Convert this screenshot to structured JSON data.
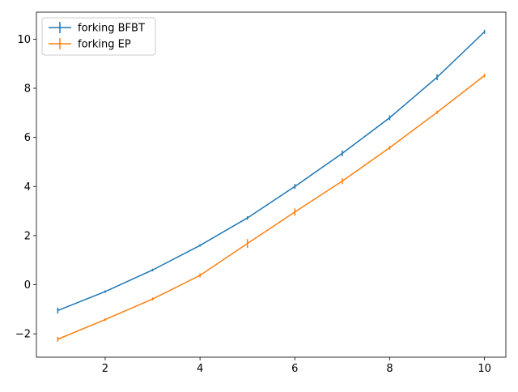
{
  "chart_data": {
    "type": "line",
    "title": "",
    "xlabel": "",
    "ylabel": "",
    "x": [
      1,
      2,
      3,
      4,
      5,
      6,
      7,
      8,
      9,
      10
    ],
    "xlim": [
      0.55,
      10.45
    ],
    "ylim": [
      -2.95,
      11.1
    ],
    "xticks": [
      2,
      4,
      6,
      8,
      10
    ],
    "yticks": [
      -2,
      0,
      2,
      4,
      6,
      8,
      10
    ],
    "xtick_labels": [
      "2",
      "4",
      "6",
      "8",
      "10"
    ],
    "ytick_labels": [
      "−2",
      "0",
      "2",
      "4",
      "6",
      "8",
      "10"
    ],
    "grid": false,
    "legend_position": "upper-left",
    "series": [
      {
        "name": "forking BFBT",
        "color": "#1f77b4",
        "values": [
          -1.05,
          -0.28,
          0.6,
          1.6,
          2.72,
          4.0,
          5.35,
          6.8,
          8.45,
          10.3
        ],
        "errors": [
          0.12,
          0.05,
          0.05,
          0.05,
          0.07,
          0.1,
          0.12,
          0.1,
          0.12,
          0.08
        ]
      },
      {
        "name": "forking EP",
        "color": "#ff7f0e",
        "values": [
          -2.22,
          -1.42,
          -0.58,
          0.38,
          1.68,
          2.96,
          4.22,
          5.58,
          7.02,
          8.52
        ],
        "errors": [
          0.1,
          0.05,
          0.06,
          0.08,
          0.18,
          0.15,
          0.12,
          0.08,
          0.07,
          0.07
        ]
      }
    ]
  }
}
